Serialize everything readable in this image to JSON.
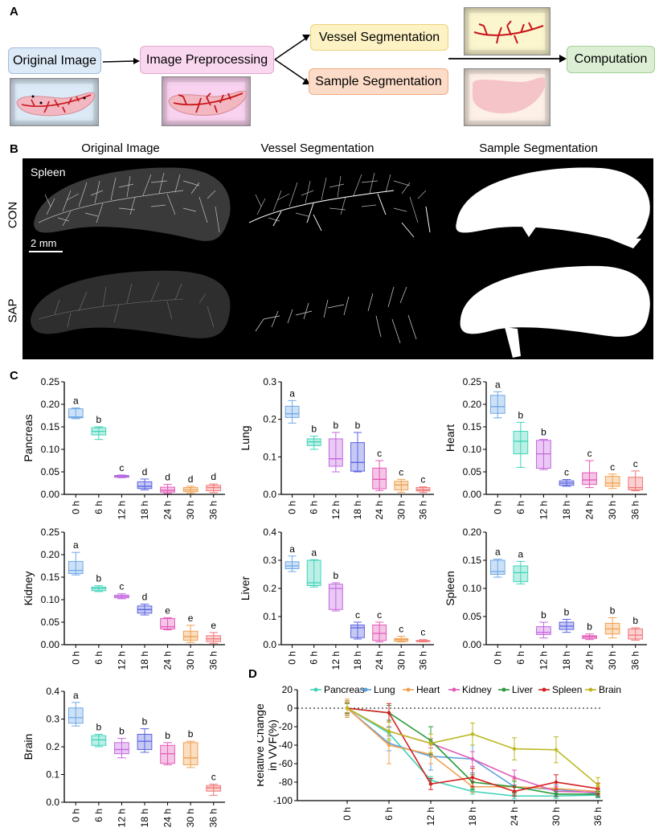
{
  "panels": {
    "a": "A",
    "b": "B",
    "c": "C",
    "d": "D"
  },
  "flow": {
    "original": "Original Image",
    "preprocess": "Image Preprocessing",
    "vessel": "Vessel Segmentation",
    "sample": "Sample Segmentation",
    "compute": "Computation",
    "colors": {
      "original": "#dce9f7",
      "preprocess": "#f9d7ef",
      "vessel": "#fdf2c4",
      "sample": "#fcdcc8",
      "compute": "#dcefd5",
      "vessel_red": "#c9151b",
      "tissue": "#f2b7c0"
    }
  },
  "micrographs": {
    "col_original": "Original Image",
    "col_vessel": "Vessel Segmentation",
    "col_sample": "Sample Segmentation",
    "organ_label": "Spleen",
    "row_con": "CON",
    "row_sap": "SAP",
    "scale_bar": "2 mm"
  },
  "chart_data": [
    {
      "type": "box",
      "ylabel": "Pancreas",
      "ylim": [
        0,
        0.25
      ],
      "yticks": [
        "0.00",
        "0.05",
        "0.10",
        "0.15",
        "0.20",
        "0.25"
      ],
      "categories": [
        "0 h",
        "6 h",
        "12 h",
        "18 h",
        "24 h",
        "30 h",
        "36 h"
      ],
      "boxes": [
        [
          0.168,
          0.17,
          0.172,
          0.19,
          0.192
        ],
        [
          0.122,
          0.132,
          0.14,
          0.148,
          0.15
        ],
        [
          0.037,
          0.038,
          0.04,
          0.042,
          0.043
        ],
        [
          0.01,
          0.013,
          0.018,
          0.028,
          0.034
        ],
        [
          0.002,
          0.005,
          0.009,
          0.016,
          0.022
        ],
        [
          0.003,
          0.006,
          0.01,
          0.015,
          0.018
        ],
        [
          0.004,
          0.008,
          0.015,
          0.02,
          0.023
        ]
      ],
      "letters": [
        "a",
        "b",
        "c",
        "d",
        "d",
        "d",
        "d"
      ],
      "colors": [
        "#6fa8e6",
        "#3fd3b8",
        "#b266e0",
        "#5b63e0",
        "#e35ab8",
        "#f0a050",
        "#f07878"
      ]
    },
    {
      "type": "box",
      "ylabel": "Lung",
      "ylim": [
        0,
        0.3
      ],
      "yticks": [
        "0.0",
        "0.1",
        "0.2",
        "0.3"
      ],
      "categories": [
        "0 h",
        "6 h",
        "12 h",
        "18 h",
        "24 h",
        "30 h",
        "36 h"
      ],
      "boxes": [
        [
          0.19,
          0.205,
          0.215,
          0.235,
          0.25
        ],
        [
          0.12,
          0.13,
          0.14,
          0.148,
          0.155
        ],
        [
          0.06,
          0.075,
          0.095,
          0.148,
          0.165
        ],
        [
          0.06,
          0.062,
          0.085,
          0.138,
          0.165
        ],
        [
          0.01,
          0.015,
          0.04,
          0.07,
          0.09
        ],
        [
          0.005,
          0.012,
          0.025,
          0.035,
          0.04
        ],
        [
          0.005,
          0.009,
          0.012,
          0.018,
          0.02
        ]
      ],
      "letters": [
        "a",
        "b",
        "b",
        "b",
        "c",
        "c",
        "c"
      ],
      "colors": [
        "#6fa8e6",
        "#3fd3b8",
        "#c466e0",
        "#5b63e0",
        "#e35ab8",
        "#f0a050",
        "#f07878"
      ]
    },
    {
      "type": "box",
      "ylabel": "Heart",
      "ylim": [
        0,
        0.25
      ],
      "yticks": [
        "0.00",
        "0.05",
        "0.10",
        "0.15",
        "0.20",
        "0.25"
      ],
      "categories": [
        "0 h",
        "6 h",
        "12 h",
        "18 h",
        "24 h",
        "30 h",
        "36 h"
      ],
      "boxes": [
        [
          0.17,
          0.18,
          0.195,
          0.22,
          0.228
        ],
        [
          0.06,
          0.09,
          0.118,
          0.14,
          0.16
        ],
        [
          0.055,
          0.058,
          0.09,
          0.12,
          0.122
        ],
        [
          0.018,
          0.02,
          0.025,
          0.03,
          0.033
        ],
        [
          0.015,
          0.022,
          0.032,
          0.048,
          0.075
        ],
        [
          0.013,
          0.018,
          0.025,
          0.04,
          0.045
        ],
        [
          0.008,
          0.01,
          0.015,
          0.038,
          0.052
        ]
      ],
      "letters": [
        "a",
        "b",
        "b",
        "c",
        "c",
        "c",
        "c"
      ],
      "colors": [
        "#6fa8e6",
        "#3fd3b8",
        "#c466e0",
        "#5b63e0",
        "#e35ab8",
        "#f0a050",
        "#f07878"
      ]
    },
    {
      "type": "box",
      "ylabel": "Kidney",
      "ylim": [
        0,
        0.25
      ],
      "yticks": [
        "0.00",
        "0.05",
        "0.10",
        "0.15",
        "0.20",
        "0.25"
      ],
      "categories": [
        "0 h",
        "6 h",
        "12 h",
        "18 h",
        "24 h",
        "30 h",
        "36 h"
      ],
      "boxes": [
        [
          0.155,
          0.158,
          0.165,
          0.185,
          0.205
        ],
        [
          0.118,
          0.12,
          0.125,
          0.128,
          0.131
        ],
        [
          0.102,
          0.104,
          0.107,
          0.11,
          0.113
        ],
        [
          0.066,
          0.07,
          0.078,
          0.086,
          0.09
        ],
        [
          0.033,
          0.035,
          0.04,
          0.058,
          0.06
        ],
        [
          0.005,
          0.01,
          0.018,
          0.03,
          0.043
        ],
        [
          0.003,
          0.007,
          0.013,
          0.02,
          0.027
        ]
      ],
      "letters": [
        "a",
        "b",
        "c",
        "d",
        "e",
        "e",
        "e"
      ],
      "colors": [
        "#6fa8e6",
        "#3fd3b8",
        "#c466e0",
        "#5b63e0",
        "#e35ab8",
        "#f0a050",
        "#f07878"
      ]
    },
    {
      "type": "box",
      "ylabel": "Liver",
      "ylim": [
        0,
        0.4
      ],
      "yticks": [
        "0.0",
        "0.1",
        "0.2",
        "0.3",
        "0.4"
      ],
      "categories": [
        "0 h",
        "6 h",
        "12 h",
        "18 h",
        "24 h",
        "30 h",
        "36 h"
      ],
      "boxes": [
        [
          0.26,
          0.27,
          0.28,
          0.295,
          0.315
        ],
        [
          0.205,
          0.21,
          0.22,
          0.3,
          0.302
        ],
        [
          0.12,
          0.125,
          0.2,
          0.215,
          0.22
        ],
        [
          0.02,
          0.025,
          0.06,
          0.07,
          0.08
        ],
        [
          0.01,
          0.015,
          0.04,
          0.07,
          0.08
        ],
        [
          0.01,
          0.012,
          0.018,
          0.022,
          0.03
        ],
        [
          0.01,
          0.011,
          0.013,
          0.015,
          0.018
        ]
      ],
      "letters": [
        "a",
        "a",
        "b",
        "c",
        "c",
        "c",
        "c"
      ],
      "colors": [
        "#6fa8e6",
        "#3fd3b8",
        "#c466e0",
        "#5b63e0",
        "#e35ab8",
        "#f0a050",
        "#f07878"
      ]
    },
    {
      "type": "box",
      "ylabel": "Spleen",
      "ylim": [
        0,
        0.2
      ],
      "yticks": [
        "0.00",
        "0.05",
        "0.10",
        "0.15",
        "0.20"
      ],
      "categories": [
        "0 h",
        "6 h",
        "12 h",
        "18 h",
        "24 h",
        "30 h",
        "36 h"
      ],
      "boxes": [
        [
          0.12,
          0.125,
          0.13,
          0.15,
          0.152
        ],
        [
          0.108,
          0.112,
          0.128,
          0.14,
          0.148
        ],
        [
          0.012,
          0.018,
          0.022,
          0.032,
          0.04
        ],
        [
          0.022,
          0.027,
          0.033,
          0.04,
          0.045
        ],
        [
          0.009,
          0.011,
          0.014,
          0.016,
          0.019
        ],
        [
          0.012,
          0.019,
          0.028,
          0.038,
          0.048
        ],
        [
          0.008,
          0.01,
          0.017,
          0.028,
          0.03
        ]
      ],
      "letters": [
        "a",
        "a",
        "b",
        "b",
        "b",
        "b",
        "b"
      ],
      "colors": [
        "#6fa8e6",
        "#3fd3b8",
        "#c466e0",
        "#5b63e0",
        "#e35ab8",
        "#f0a050",
        "#f07878"
      ]
    },
    {
      "type": "box",
      "ylabel": "Brain",
      "ylim": [
        0,
        0.4
      ],
      "yticks": [
        "0.0",
        "0.1",
        "0.2",
        "0.3",
        "0.4"
      ],
      "categories": [
        "0 h",
        "6 h",
        "12 h",
        "18 h",
        "24 h",
        "30 h",
        "36 h"
      ],
      "boxes": [
        [
          0.275,
          0.285,
          0.305,
          0.34,
          0.36
        ],
        [
          0.2,
          0.205,
          0.225,
          0.24,
          0.245
        ],
        [
          0.16,
          0.175,
          0.19,
          0.215,
          0.23
        ],
        [
          0.18,
          0.19,
          0.22,
          0.245,
          0.265
        ],
        [
          0.135,
          0.14,
          0.175,
          0.205,
          0.215
        ],
        [
          0.125,
          0.135,
          0.16,
          0.215,
          0.22
        ],
        [
          0.025,
          0.04,
          0.052,
          0.06,
          0.065
        ]
      ],
      "letters": [
        "a",
        "b",
        "b",
        "b",
        "b",
        "b",
        "c"
      ],
      "colors": [
        "#6fa8e6",
        "#3fd3b8",
        "#c466e0",
        "#5b63e0",
        "#e35ab8",
        "#f0a050",
        "#f07878"
      ]
    },
    {
      "type": "line",
      "ylabel": "Relative Change in VVF(%)",
      "ylabel_lines": [
        "Relative Change",
        "in VVF(%)"
      ],
      "ylim": [
        -100,
        20
      ],
      "yticks": [
        "20",
        "0",
        "-20",
        "-40",
        "-60",
        "-80",
        "-100"
      ],
      "x": [
        "0 h",
        "6 h",
        "12 h",
        "18 h",
        "24 h",
        "30 h",
        "36 h"
      ],
      "series": [
        {
          "name": "Pancreas",
          "color": "#3fd3b8",
          "values": [
            0,
            -27,
            -78,
            -90,
            -95,
            -95,
            -94
          ],
          "err": [
            8,
            6,
            4,
            3,
            3,
            3,
            3
          ]
        },
        {
          "name": "Lung",
          "color": "#5aa0e0",
          "values": [
            0,
            -38,
            -52,
            -55,
            -85,
            -88,
            -92
          ],
          "err": [
            8,
            8,
            15,
            15,
            8,
            5,
            4
          ]
        },
        {
          "name": "Heart",
          "color": "#f0a050",
          "values": [
            0,
            -40,
            -50,
            -85,
            -85,
            -87,
            -90
          ],
          "err": [
            10,
            20,
            10,
            6,
            8,
            6,
            5
          ]
        },
        {
          "name": "Kidney",
          "color": "#e35ab8",
          "values": [
            0,
            -25,
            -38,
            -55,
            -75,
            -90,
            -91
          ],
          "err": [
            8,
            5,
            5,
            8,
            8,
            5,
            4
          ]
        },
        {
          "name": "Liver",
          "color": "#2a9a3a",
          "values": [
            0,
            -5,
            -35,
            -80,
            -85,
            -93,
            -93
          ],
          "err": [
            5,
            8,
            15,
            8,
            6,
            3,
            3
          ]
        },
        {
          "name": "Spleen",
          "color": "#d42020",
          "values": [
            0,
            -5,
            -82,
            -75,
            -90,
            -80,
            -87
          ],
          "err": [
            6,
            10,
            6,
            10,
            5,
            8,
            6
          ]
        },
        {
          "name": "Brain",
          "color": "#bcb820",
          "values": [
            0,
            -25,
            -38,
            -28,
            -44,
            -45,
            -83
          ],
          "err": [
            8,
            10,
            10,
            12,
            12,
            14,
            8
          ]
        }
      ]
    }
  ]
}
